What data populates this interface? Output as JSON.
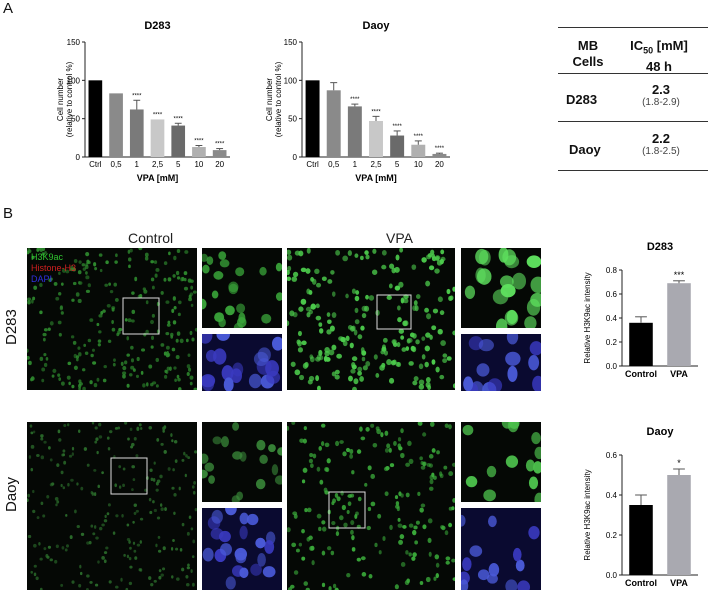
{
  "panels": {
    "a": "A",
    "b": "B"
  },
  "chart_data": [
    {
      "type": "bar",
      "title": "D283",
      "xlabel": "VPA [mM]",
      "ylabel": "Cell number",
      "ylabel2": "(relative to control %)",
      "categories": [
        "Ctrl",
        "0,5",
        "1",
        "2,5",
        "5",
        "10",
        "20"
      ],
      "values": [
        100,
        83,
        62,
        49,
        41,
        13,
        9
      ],
      "errors": [
        0,
        0,
        12,
        0,
        3,
        2,
        2
      ],
      "significance": [
        "",
        "",
        "****",
        "****",
        "****",
        "****",
        "****"
      ],
      "colors": [
        "#000000",
        "#8a8a8a",
        "#7a7a7a",
        "#c8c8c8",
        "#6a6a6a",
        "#b0b0b0",
        "#8a8a8a"
      ],
      "yticks": [
        0,
        50,
        100,
        150
      ],
      "ylim": [
        0,
        150
      ]
    },
    {
      "type": "bar",
      "title": "Daoy",
      "xlabel": "VPA [mM]",
      "ylabel": "Cell number",
      "ylabel2": "(relative to control %)",
      "categories": [
        "Ctrl",
        "0,5",
        "1",
        "2,5",
        "5",
        "10",
        "20"
      ],
      "values": [
        100,
        87,
        66,
        47,
        28,
        16,
        4
      ],
      "errors": [
        0,
        10,
        3,
        6,
        6,
        5,
        1
      ],
      "significance": [
        "",
        "",
        "****",
        "****",
        "****",
        "****",
        "****"
      ],
      "colors": [
        "#000000",
        "#8a8a8a",
        "#7a7a7a",
        "#c8c8c8",
        "#6a6a6a",
        "#b0b0b0",
        "#8a8a8a"
      ],
      "yticks": [
        0,
        50,
        100,
        150
      ],
      "ylim": [
        0,
        150
      ]
    },
    {
      "type": "bar",
      "title": "D283",
      "ylabel": "Relative H3K9ac intensity",
      "categories": [
        "Control",
        "VPA"
      ],
      "values": [
        0.36,
        0.69
      ],
      "errors": [
        0.05,
        0.02
      ],
      "significance": [
        "",
        "***"
      ],
      "colors": [
        "#000000",
        "#a9a9b0"
      ],
      "yticks": [
        0.0,
        0.2,
        0.4,
        0.6,
        0.8
      ],
      "ylim": [
        0,
        0.8
      ]
    },
    {
      "type": "bar",
      "title": "Daoy",
      "ylabel": "Relative H3K9ac intensity",
      "categories": [
        "Control",
        "VPA"
      ],
      "values": [
        0.35,
        0.5
      ],
      "errors": [
        0.05,
        0.03
      ],
      "significance": [
        "",
        "*"
      ],
      "colors": [
        "#000000",
        "#a9a9b0"
      ],
      "yticks": [
        0.0,
        0.2,
        0.4,
        0.6
      ],
      "ylim": [
        0,
        0.6
      ]
    }
  ],
  "ic50_table": {
    "header_cells": [
      "MB",
      "Cells"
    ],
    "header_ic": "IC",
    "header_ic_sub": "50",
    "header_ic_unit": " [mM]",
    "header_time": "48 h",
    "rows": [
      {
        "cell": "D283",
        "value": "2.3",
        "range": "(1.8-2.9)"
      },
      {
        "cell": "Daoy",
        "value": "2.2",
        "range": "(1.8-2.5)"
      }
    ]
  },
  "microscopy": {
    "col_control": "Control",
    "col_vpa": "VPA",
    "row_d283": "D283",
    "row_daoy": "Daoy",
    "legend": [
      {
        "text": "H3K9ac",
        "color": "#2fc42f"
      },
      {
        "text": "Histone-H3",
        "color": "#d02020"
      },
      {
        "text": "DAPI",
        "color": "#3030e0"
      }
    ]
  }
}
